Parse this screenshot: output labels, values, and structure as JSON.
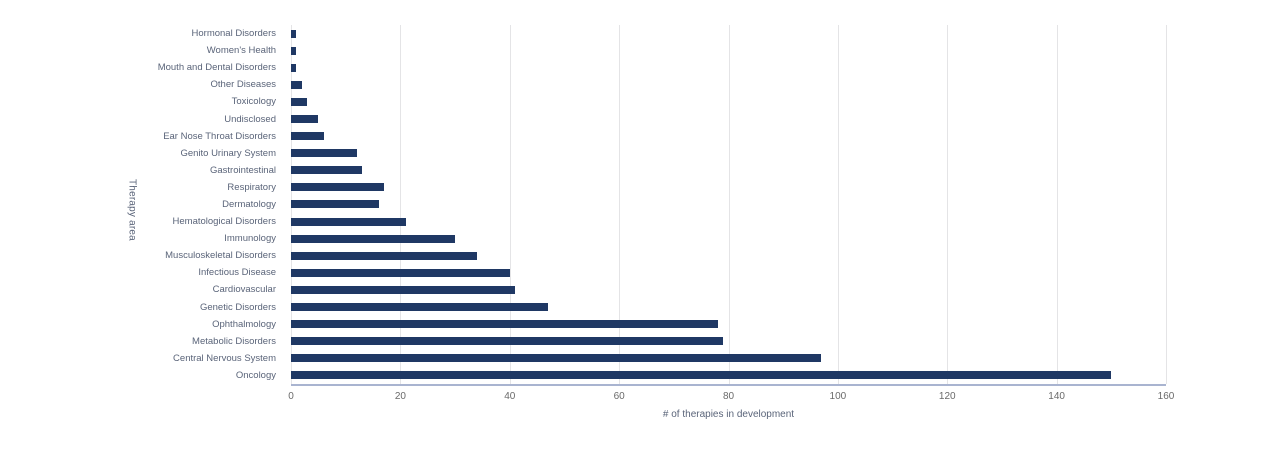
{
  "chart_data": {
    "type": "bar",
    "orientation": "horizontal",
    "title": "",
    "xlabel": "# of therapies in development",
    "ylabel": "Therapy area",
    "xlim": [
      0,
      160
    ],
    "xticks": [
      0,
      20,
      40,
      60,
      80,
      100,
      120,
      140,
      160
    ],
    "grid": "vertical",
    "legend": "none",
    "categories": [
      "Hormonal Disorders",
      "Women's Health",
      "Mouth and Dental Disorders",
      "Other Diseases",
      "Toxicology",
      "Undisclosed",
      "Ear Nose Throat Disorders",
      "Genito Urinary System",
      "Gastrointestinal",
      "Respiratory",
      "Dermatology",
      "Hematological Disorders",
      "Immunology",
      "Musculoskeletal Disorders",
      "Infectious Disease",
      "Cardiovascular",
      "Genetic Disorders",
      "Ophthalmology",
      "Metabolic Disorders",
      "Central Nervous System",
      "Oncology"
    ],
    "values": [
      1,
      1,
      1,
      2,
      3,
      5,
      6,
      12,
      13,
      17,
      16,
      21,
      30,
      34,
      40,
      41,
      47,
      78,
      79,
      97,
      150
    ],
    "colors": {
      "bar": "#1f3864",
      "gridline": "#e4e4e6",
      "axis_line": "#a9b4d0",
      "tick_label": "#6a6a6a",
      "category_label": "#5a6479"
    }
  }
}
